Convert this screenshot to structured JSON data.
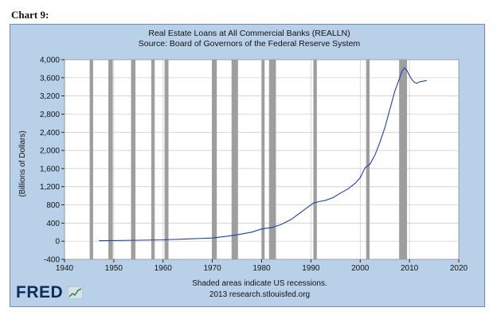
{
  "heading": "Chart 9:",
  "chart_data": {
    "type": "line",
    "title": "Real Estate Loans at All Commercial Banks (REALLN)",
    "subtitle": "Source: Board of Governors of the Federal Reserve System",
    "ylabel": "(Billions of Dollars)",
    "xlim": [
      1940,
      2020
    ],
    "ylim": [
      -400,
      4000
    ],
    "x_ticks": [
      1940,
      1950,
      1960,
      1970,
      1980,
      1990,
      2000,
      2010,
      2020
    ],
    "y_ticks": [
      -400,
      0,
      400,
      800,
      1200,
      1600,
      2000,
      2400,
      2800,
      3200,
      3600,
      4000
    ],
    "y_tick_labels": [
      "-400",
      "0",
      "400",
      "800",
      "1,200",
      "1,600",
      "2,000",
      "2,400",
      "2,800",
      "3,200",
      "3,600",
      "4,000"
    ],
    "grid": true,
    "line_color": "#1f3fb0",
    "recession_color": "#9e9e9e",
    "recessions": [
      [
        1945.1,
        1945.8
      ],
      [
        1948.9,
        1949.8
      ],
      [
        1953.5,
        1954.4
      ],
      [
        1957.6,
        1958.3
      ],
      [
        1960.3,
        1961.1
      ],
      [
        1969.9,
        1970.9
      ],
      [
        1973.9,
        1975.2
      ],
      [
        1980.0,
        1980.6
      ],
      [
        1981.5,
        1982.9
      ],
      [
        1990.5,
        1991.2
      ],
      [
        2001.2,
        2001.9
      ],
      [
        2007.9,
        2009.5
      ]
    ],
    "series": [
      {
        "x": [
          1947,
          1950,
          1955,
          1960,
          1965,
          1970,
          1973,
          1975,
          1978,
          1980,
          1982,
          1984,
          1986,
          1988,
          1989.5,
          1990.5,
          1991.5,
          1993,
          1994.5,
          1996,
          1997.5,
          1999,
          2000,
          2001,
          2002,
          2003,
          2004,
          2005,
          2006,
          2007,
          2007.5,
          2008,
          2008.5,
          2009,
          2009.5,
          2010,
          2010.5,
          2011,
          2011.5,
          2012,
          2012.5,
          2013,
          2013.5
        ],
        "y": [
          10,
          14,
          20,
          30,
          50,
          70,
          110,
          140,
          200,
          270,
          300,
          370,
          480,
          640,
          760,
          840,
          870,
          900,
          960,
          1060,
          1150,
          1280,
          1400,
          1620,
          1700,
          1900,
          2180,
          2500,
          2900,
          3300,
          3450,
          3600,
          3750,
          3820,
          3760,
          3650,
          3560,
          3500,
          3480,
          3510,
          3520,
          3530,
          3540
        ]
      }
    ]
  },
  "footer": {
    "note_line1": "Shaded areas indicate US recessions.",
    "note_line2": "2013 research.stlouisfed.org"
  },
  "logo": {
    "text": "FRED"
  }
}
